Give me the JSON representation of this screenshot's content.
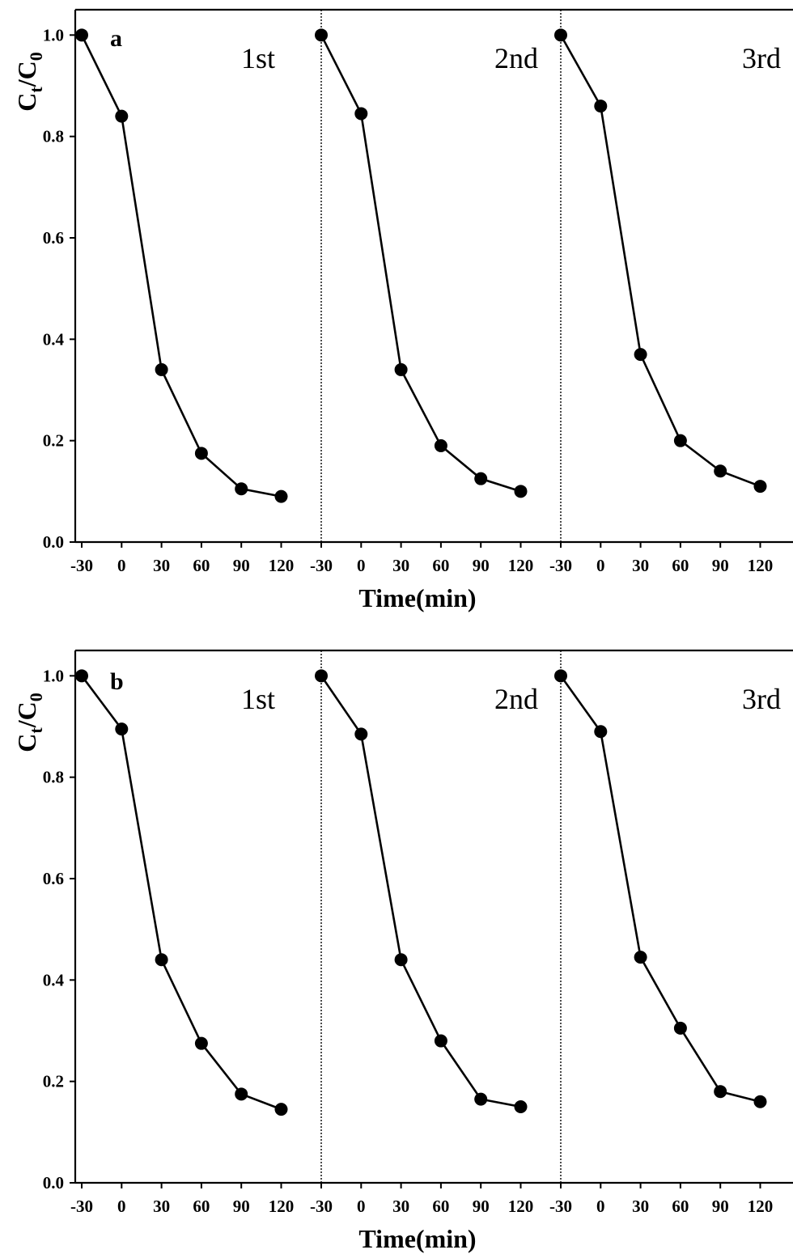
{
  "chart_data": [
    {
      "type": "line",
      "panel_label": "a",
      "xlabel": "Time(min)",
      "ylabel": "C_t/C_0",
      "ylim": [
        0.0,
        1.05
      ],
      "yticks": [
        "0.0",
        "0.2",
        "0.4",
        "0.6",
        "0.8",
        "1.0"
      ],
      "x": [
        -30,
        0,
        30,
        60,
        90,
        120
      ],
      "xticks": [
        "-30",
        "0",
        "30",
        "60",
        "90",
        "120"
      ],
      "grid": false,
      "series": [
        {
          "name": "1st",
          "values": [
            1.0,
            0.84,
            0.34,
            0.175,
            0.105,
            0.09
          ]
        },
        {
          "name": "2nd",
          "values": [
            1.0,
            0.845,
            0.34,
            0.19,
            0.125,
            0.1
          ]
        },
        {
          "name": "3rd",
          "values": [
            1.0,
            0.86,
            0.37,
            0.2,
            0.14,
            0.11
          ]
        }
      ]
    },
    {
      "type": "line",
      "panel_label": "b",
      "xlabel": "Time(min)",
      "ylabel": "C_t/C_0",
      "ylim": [
        0.0,
        1.05
      ],
      "yticks": [
        "0.0",
        "0.2",
        "0.4",
        "0.6",
        "0.8",
        "1.0"
      ],
      "x": [
        -30,
        0,
        30,
        60,
        90,
        120
      ],
      "xticks": [
        "-30",
        "0",
        "30",
        "60",
        "90",
        "120"
      ],
      "grid": false,
      "series": [
        {
          "name": "1st",
          "values": [
            1.0,
            0.895,
            0.44,
            0.275,
            0.175,
            0.145
          ]
        },
        {
          "name": "2nd",
          "values": [
            1.0,
            0.885,
            0.44,
            0.28,
            0.165,
            0.15
          ]
        },
        {
          "name": "3rd",
          "values": [
            1.0,
            0.89,
            0.445,
            0.305,
            0.18,
            0.16
          ]
        }
      ]
    }
  ],
  "colors": {
    "line": "#000000",
    "marker": "#000000",
    "background": "#ffffff"
  }
}
